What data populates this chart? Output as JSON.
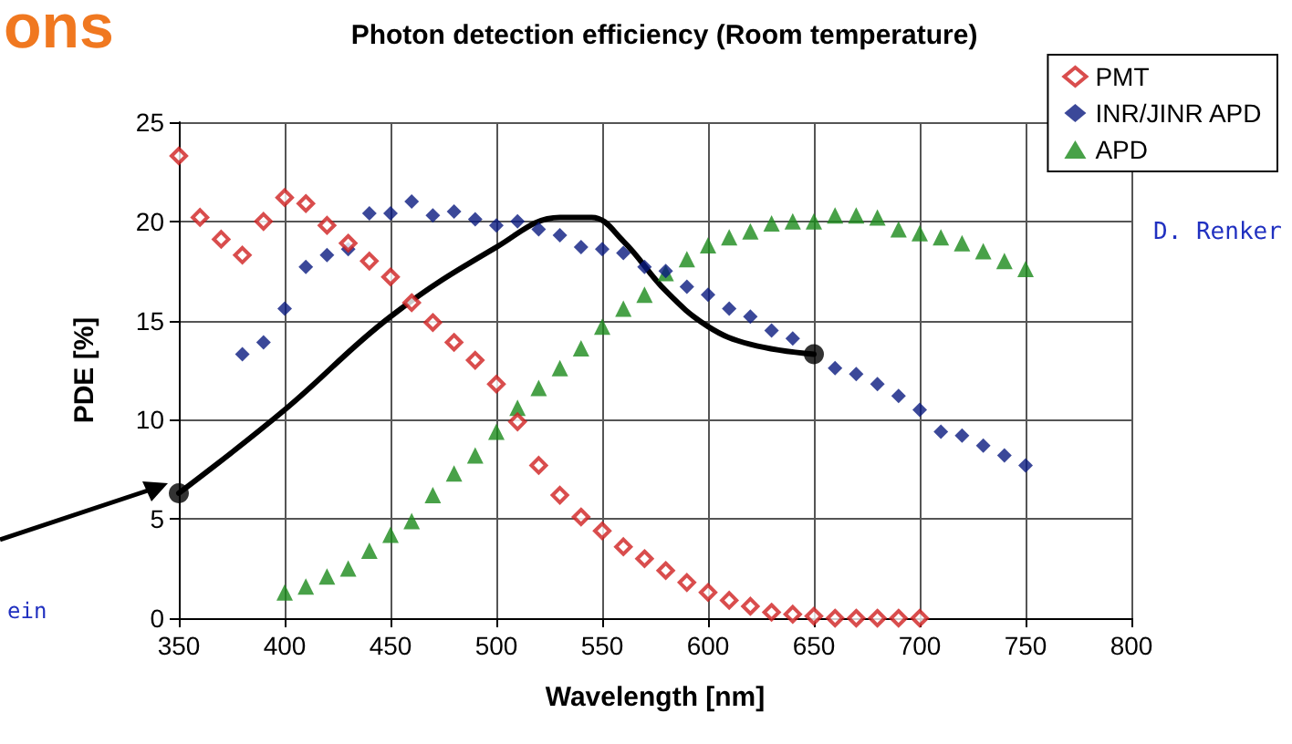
{
  "chart_data": {
    "type": "scatter",
    "title": "Photon detection efficiency (Room temperature)",
    "xlabel": "Wavelength [nm]",
    "ylabel": "PDE [%]",
    "xlim": [
      350,
      800
    ],
    "xticks": [
      350,
      400,
      450,
      500,
      550,
      600,
      650,
      700,
      750,
      800
    ],
    "ylim": [
      0,
      25
    ],
    "yticks": [
      0,
      5,
      10,
      15,
      20,
      25
    ],
    "grid": true,
    "legend": "top right",
    "annotations": [
      "ons",
      "D. Renker",
      "ein"
    ],
    "series": [
      {
        "name": "PMT",
        "color": "#d02020",
        "marker": "diamond",
        "x": [
          350,
          360,
          370,
          380,
          390,
          400,
          410,
          420,
          430,
          440,
          450,
          460,
          470,
          480,
          490,
          500,
          510,
          520,
          530,
          540,
          550,
          560,
          570,
          580,
          590,
          600,
          610,
          620,
          630,
          640,
          650,
          660,
          670,
          680,
          690,
          700
        ],
        "values": [
          23.3,
          20.2,
          19.1,
          18.3,
          20.0,
          21.2,
          20.9,
          19.8,
          18.9,
          18.0,
          17.2,
          15.9,
          14.9,
          13.9,
          13.0,
          11.8,
          9.9,
          7.7,
          6.2,
          5.1,
          4.4,
          3.6,
          3.0,
          2.4,
          1.8,
          1.3,
          0.9,
          0.6,
          0.3,
          0.2,
          0.1,
          0,
          0,
          0,
          0,
          0
        ]
      },
      {
        "name": "INR/JINR APD",
        "color": "#0a1a80",
        "marker": "diamond",
        "x": [
          380,
          390,
          400,
          410,
          420,
          430,
          440,
          450,
          460,
          470,
          480,
          490,
          500,
          510,
          520,
          530,
          540,
          550,
          560,
          570,
          580,
          590,
          600,
          610,
          620,
          630,
          640,
          650,
          660,
          670,
          680,
          690,
          700,
          710,
          720,
          730,
          740,
          750
        ],
        "values": [
          13.3,
          13.9,
          15.6,
          17.7,
          18.3,
          18.6,
          20.4,
          20.4,
          21.0,
          20.3,
          20.5,
          20.1,
          19.8,
          20.0,
          19.6,
          19.3,
          18.7,
          18.6,
          18.4,
          17.7,
          17.5,
          16.7,
          16.3,
          15.6,
          15.2,
          14.5,
          14.1,
          null,
          12.6,
          12.3,
          11.8,
          11.2,
          10.5,
          9.4,
          9.2,
          8.7,
          8.2,
          7.7
        ]
      },
      {
        "name": "APD",
        "color": "#1a8a1a",
        "marker": "triangle",
        "x": [
          400,
          410,
          420,
          430,
          440,
          450,
          460,
          470,
          480,
          490,
          500,
          510,
          520,
          530,
          540,
          550,
          560,
          570,
          580,
          590,
          600,
          610,
          620,
          630,
          640,
          650,
          660,
          670,
          680,
          690,
          700,
          710,
          720,
          730,
          740,
          750
        ],
        "values": [
          1.3,
          1.6,
          2.1,
          2.5,
          3.4,
          4.2,
          4.9,
          6.2,
          7.3,
          8.2,
          9.4,
          10.6,
          11.6,
          12.6,
          13.6,
          14.7,
          15.6,
          16.3,
          17.4,
          18.1,
          18.8,
          19.2,
          19.5,
          19.9,
          20.0,
          20.0,
          20.3,
          20.3,
          20.2,
          19.6,
          19.4,
          19.2,
          18.9,
          18.5,
          18.0,
          17.6
        ]
      },
      {
        "type": "line",
        "color": "#000000",
        "marker": "none",
        "x": [
          350,
          400,
          450,
          500,
          530,
          545,
          560,
          580,
          600,
          620,
          650
        ],
        "values": [
          6.3,
          10.5,
          15.2,
          18.7,
          20.2,
          20.2,
          19.0,
          16.5,
          14.7,
          13.8,
          13.3
        ]
      },
      {
        "type": "scatter",
        "color": "#000000",
        "marker": "circle",
        "x": [
          350,
          650
        ],
        "values": [
          6.3,
          13.3
        ]
      }
    ]
  }
}
